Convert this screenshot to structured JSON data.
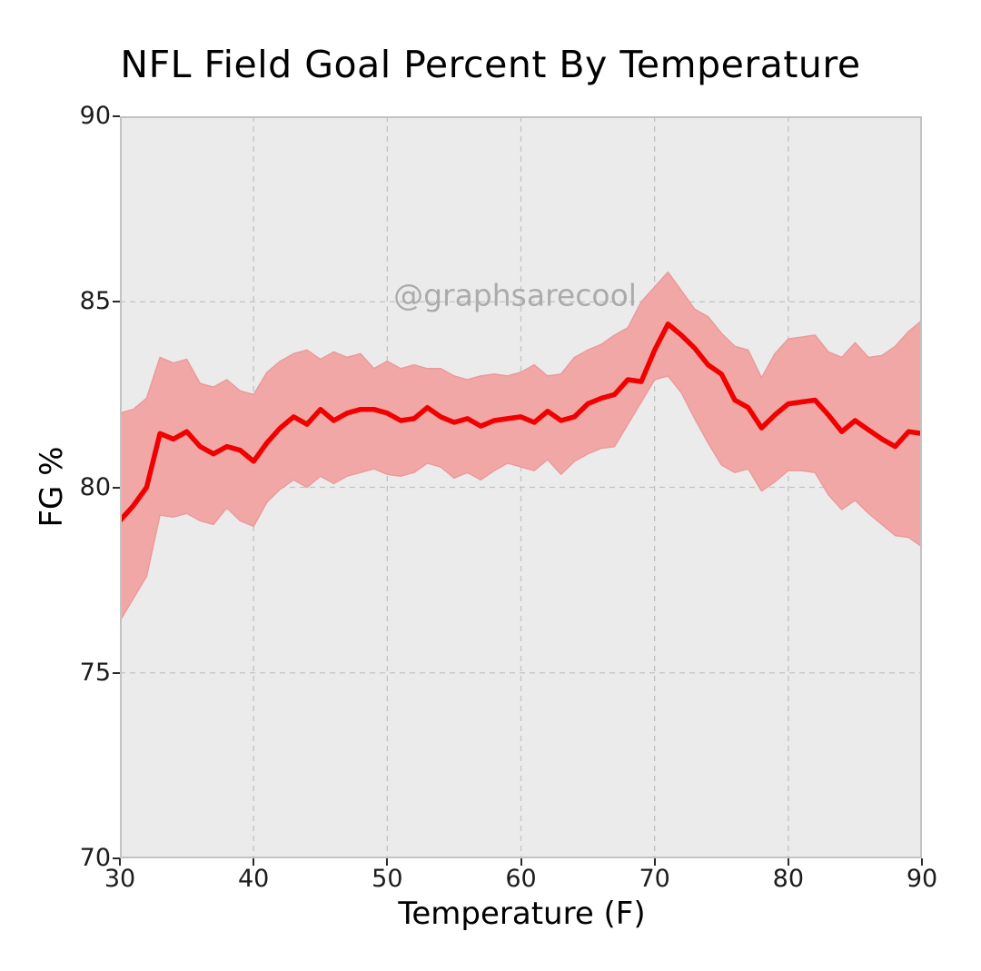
{
  "title": "NFL Field Goal Percent By Temperature",
  "watermark": "@graphsarecool",
  "style": {
    "figure_bg": "#ffffff",
    "plot_bg": "#ebebeb",
    "spine_color": "#c3c3c3",
    "grid_color": "#c2c2c2",
    "tick_color": "#2b2b2b",
    "text_color": "#1c1c1c",
    "watermark_color": "#ababab"
  },
  "chart_data": {
    "type": "line",
    "title": "NFL Field Goal Percent By Temperature",
    "xlabel": "Temperature (F)",
    "ylabel": "FG %",
    "xlim": [
      30,
      90
    ],
    "ylim": [
      70,
      90
    ],
    "xticks": [
      30,
      40,
      50,
      60,
      70,
      80,
      90
    ],
    "yticks": [
      70,
      75,
      80,
      85,
      90
    ],
    "grid": "dashed, at all ticks, both axes",
    "legend": "none",
    "line_color": "#f10000",
    "band_color": "#f2a7a7",
    "band_edge_color": "#eb9a9a",
    "x": [
      30,
      31,
      32,
      33,
      34,
      35,
      36,
      37,
      38,
      39,
      40,
      41,
      42,
      43,
      44,
      45,
      46,
      47,
      48,
      49,
      50,
      51,
      52,
      53,
      54,
      55,
      56,
      57,
      58,
      59,
      60,
      61,
      62,
      63,
      64,
      65,
      66,
      67,
      68,
      69,
      70,
      71,
      72,
      73,
      74,
      75,
      76,
      77,
      78,
      79,
      80,
      81,
      82,
      83,
      84,
      85,
      86,
      87,
      88,
      89,
      90
    ],
    "series": [
      {
        "name": "fg_percent_mean",
        "values": [
          79.1,
          79.5,
          80.0,
          81.45,
          81.3,
          81.5,
          81.1,
          80.9,
          81.1,
          81.0,
          80.7,
          81.2,
          81.6,
          81.9,
          81.7,
          82.1,
          81.8,
          82.0,
          82.1,
          82.1,
          82.0,
          81.8,
          81.85,
          82.15,
          81.9,
          81.75,
          81.85,
          81.65,
          81.8,
          81.85,
          81.9,
          81.75,
          82.05,
          81.8,
          81.9,
          82.25,
          82.4,
          82.5,
          82.9,
          82.85,
          83.7,
          84.4,
          84.1,
          83.75,
          83.3,
          83.05,
          82.35,
          82.15,
          81.6,
          81.95,
          82.25,
          82.3,
          82.35,
          81.95,
          81.5,
          81.8,
          81.55,
          81.3,
          81.1,
          81.5,
          81.45
        ]
      },
      {
        "name": "confidence_band_upper",
        "values": [
          82.0,
          82.1,
          82.4,
          83.5,
          83.35,
          83.45,
          82.8,
          82.7,
          82.9,
          82.6,
          82.5,
          83.1,
          83.4,
          83.6,
          83.7,
          83.45,
          83.65,
          83.5,
          83.6,
          83.2,
          83.4,
          83.2,
          83.3,
          83.2,
          83.2,
          83.0,
          82.9,
          83.0,
          83.05,
          83.0,
          83.1,
          83.3,
          83.0,
          83.05,
          83.5,
          83.7,
          83.85,
          84.1,
          84.3,
          85.0,
          85.4,
          85.8,
          85.3,
          84.8,
          84.6,
          84.15,
          83.8,
          83.7,
          82.95,
          83.6,
          84.0,
          84.05,
          84.1,
          83.65,
          83.5,
          83.9,
          83.5,
          83.55,
          83.8,
          84.2,
          84.5
        ]
      },
      {
        "name": "confidence_band_lower",
        "values": [
          76.4,
          77.0,
          77.6,
          79.25,
          79.2,
          79.3,
          79.1,
          79.0,
          79.45,
          79.1,
          78.95,
          79.6,
          79.95,
          80.2,
          80.0,
          80.3,
          80.1,
          80.3,
          80.4,
          80.5,
          80.35,
          80.3,
          80.4,
          80.65,
          80.55,
          80.25,
          80.4,
          80.2,
          80.45,
          80.65,
          80.55,
          80.45,
          80.75,
          80.35,
          80.7,
          80.9,
          81.05,
          81.1,
          81.7,
          82.3,
          82.9,
          83.0,
          82.55,
          81.85,
          81.2,
          80.6,
          80.4,
          80.5,
          79.9,
          80.15,
          80.45,
          80.45,
          80.4,
          79.8,
          79.4,
          79.65,
          79.3,
          79.0,
          78.7,
          78.65,
          78.4
        ]
      }
    ]
  }
}
